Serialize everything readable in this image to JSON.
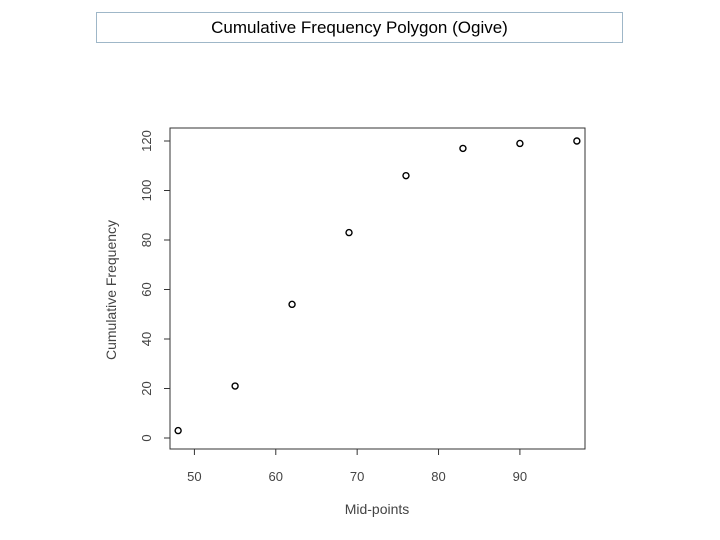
{
  "slide_title": "Cumulative Frequency Polygon (Ogive)",
  "chart_data": {
    "type": "scatter",
    "title": "",
    "xlabel": "Mid-points",
    "ylabel": "Cumulative Frequency",
    "x": [
      48,
      55,
      62,
      69,
      76,
      83,
      90,
      97
    ],
    "y": [
      3,
      21,
      54,
      83,
      106,
      117,
      119,
      120
    ],
    "xlim": [
      47,
      98
    ],
    "ylim": [
      0,
      120
    ],
    "xticks": [
      50,
      60,
      70,
      80,
      90
    ],
    "xtick_labels": [
      "50",
      "60",
      "70",
      "80",
      "90"
    ],
    "yticks": [
      0,
      20,
      40,
      60,
      80,
      100,
      120
    ],
    "ytick_labels": [
      "0",
      "20",
      "40",
      "60",
      "80",
      "100",
      "120"
    ],
    "marker": "open-circle",
    "grid": false,
    "legend": "none",
    "colors": {
      "marker": "#000000",
      "axis": "#333333",
      "text": "#444444"
    }
  }
}
